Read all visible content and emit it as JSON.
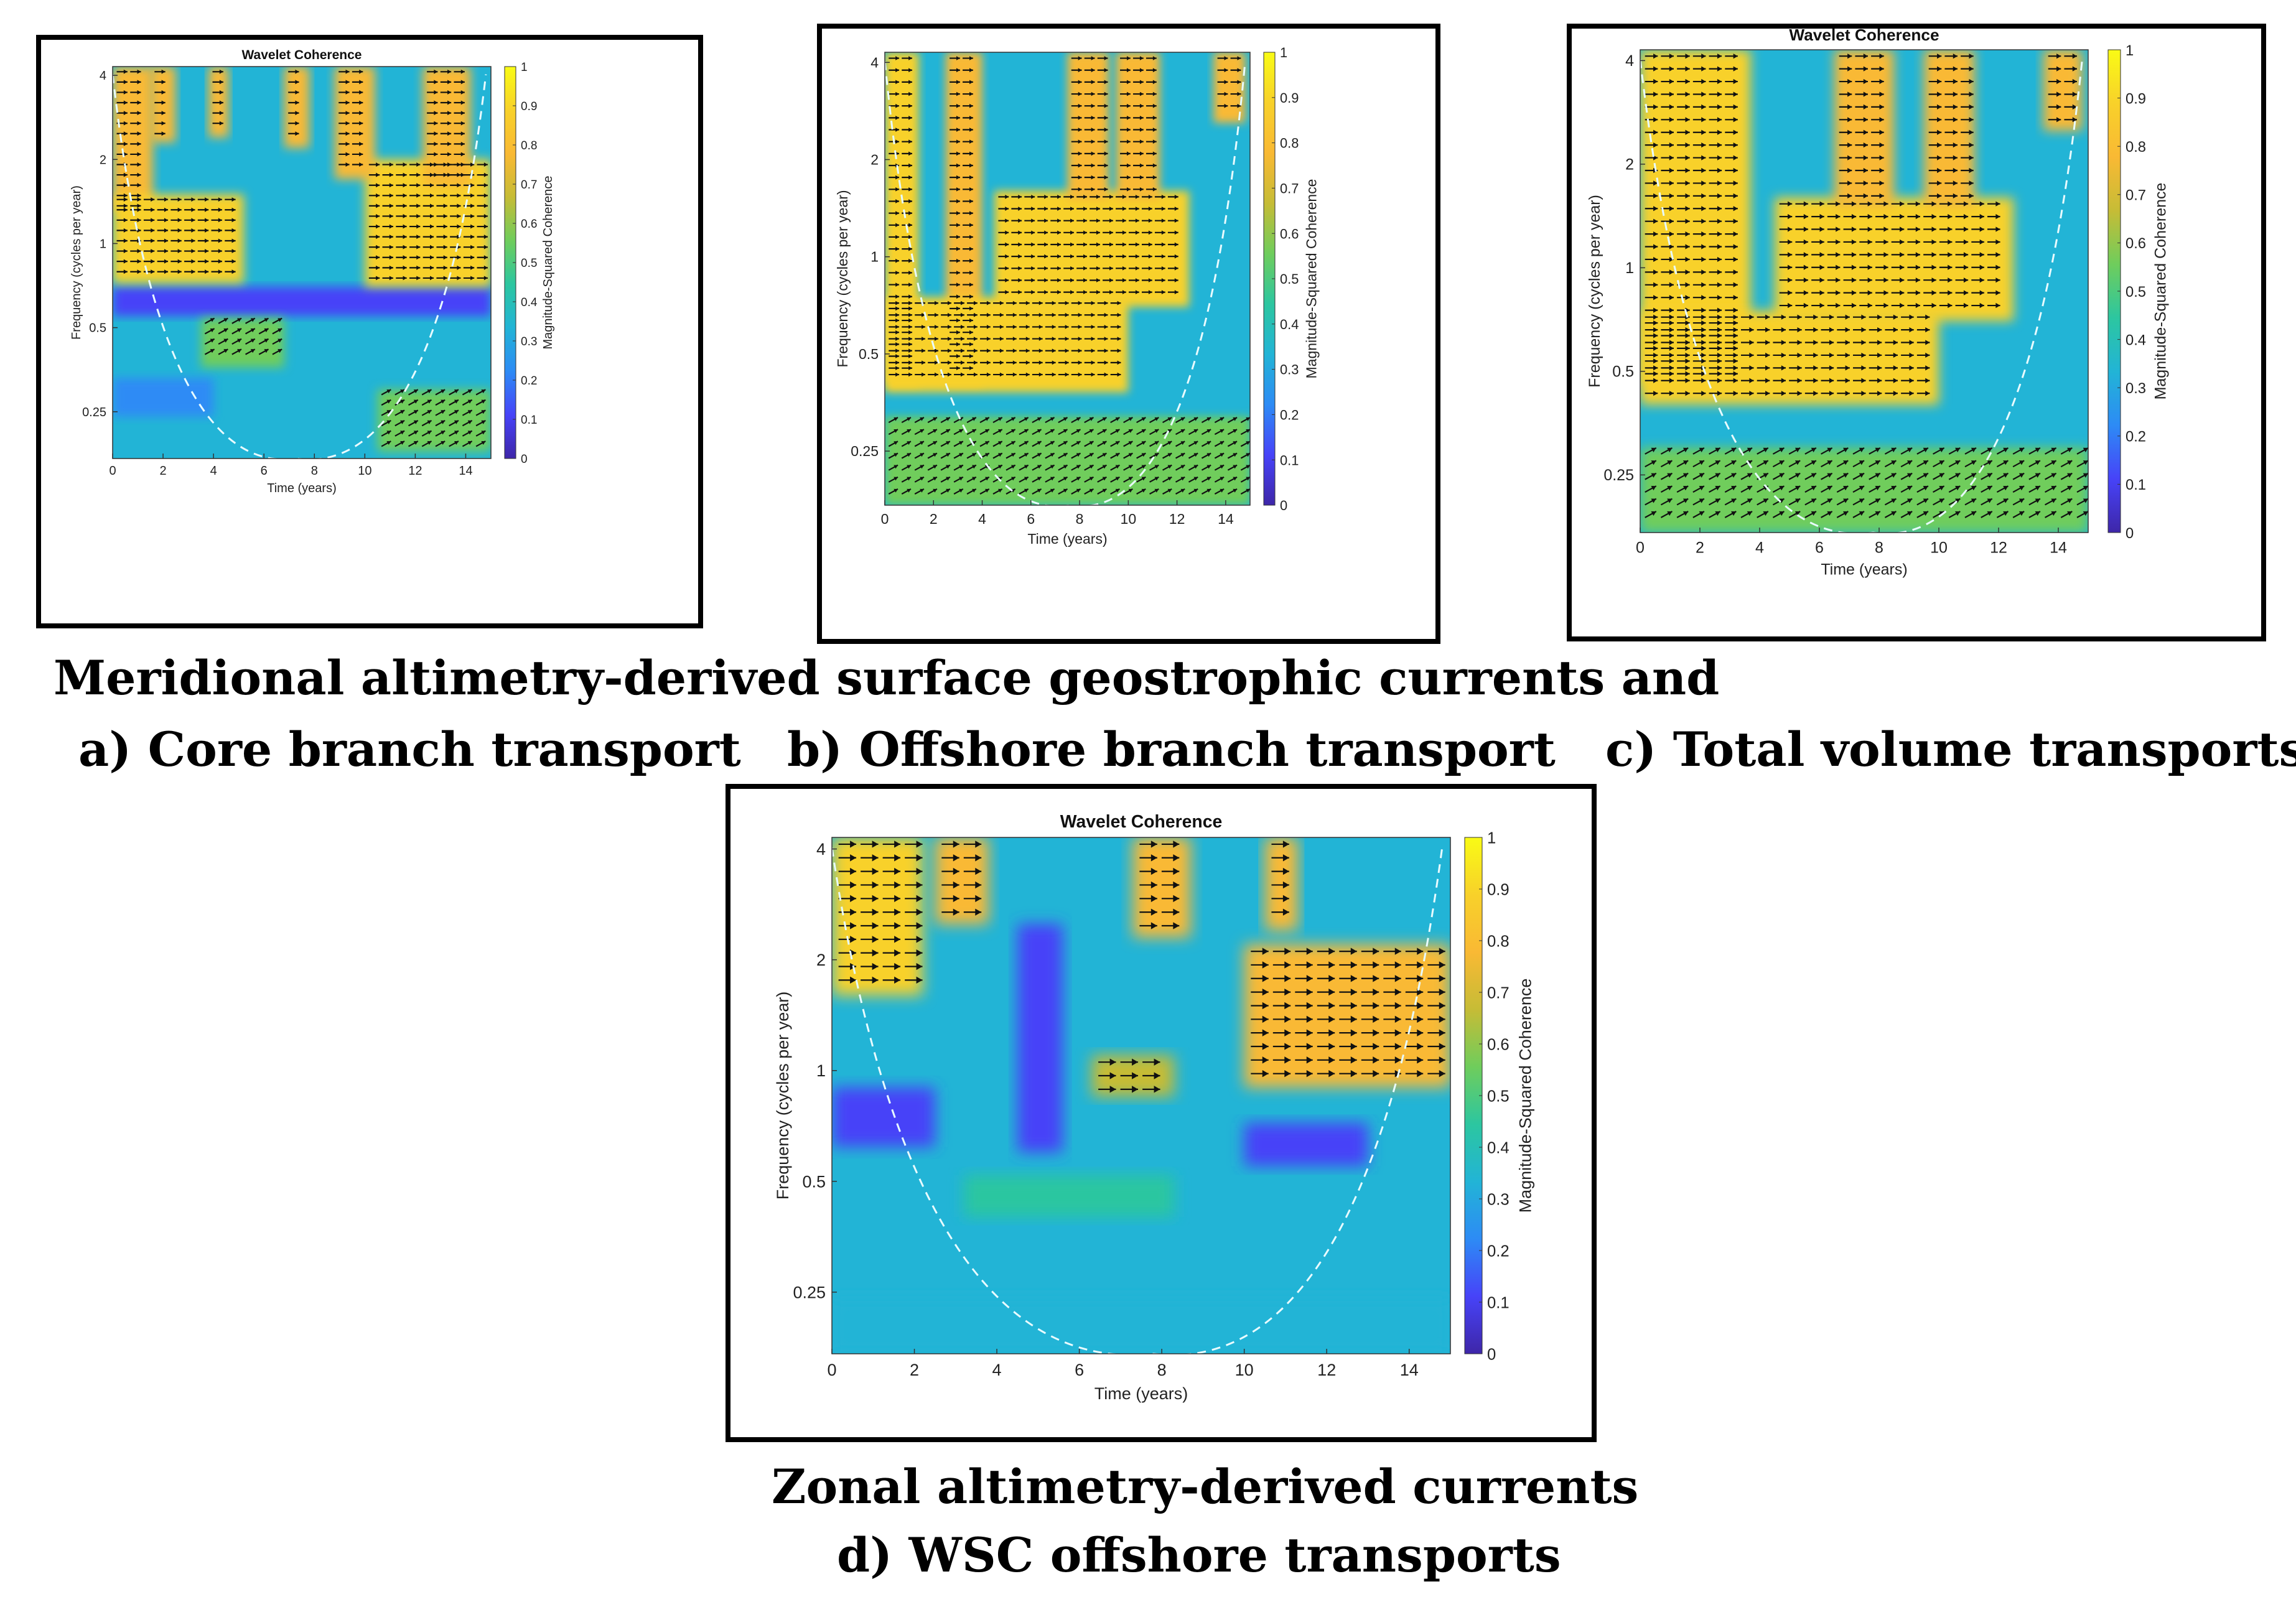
{
  "captions": {
    "meridional": "Meridional altimetry-derived surface geostrophic currents and",
    "a": "a) Core branch transport",
    "b": "b) Offshore branch transport",
    "c": "c) Total volume transports",
    "zonal": "Zonal altimetry-derived currents",
    "d": "d) WSC offshore transports"
  },
  "colormap": [
    "#3e26a8",
    "#4743f8",
    "#2d8bf5",
    "#22b4d6",
    "#2cc6a0",
    "#6fcd5c",
    "#c6bc36",
    "#f9b934",
    "#f8d12a",
    "#f9fb15"
  ],
  "chart_data": [
    {
      "id": "a",
      "type": "heatmap",
      "title": "Wavelet Coherence",
      "xlabel": "Time (years)",
      "ylabel": "Frequency (cycles per year)",
      "colorbar_label": "Magnitude-Squared Coherence",
      "xticks": [
        "0",
        "2",
        "4",
        "6",
        "8",
        "10",
        "12",
        "14"
      ],
      "yticks": [
        "4",
        "2",
        "1",
        "0.5",
        "0.25"
      ],
      "cticks": [
        "0",
        "0.1",
        "0.2",
        "0.3",
        "0.4",
        "0.5",
        "0.6",
        "0.7",
        "0.8",
        "0.9",
        "1"
      ],
      "xlim": [
        0,
        15
      ],
      "ylim": [
        0.17,
        4.3
      ],
      "clim": [
        0,
        1
      ],
      "coi_x": [
        0,
        7.3,
        14.8
      ],
      "regions": [
        {
          "x": [
            0,
            15
          ],
          "y": [
            0.17,
            4.3
          ],
          "c": 0.32
        },
        {
          "x": [
            0,
            15
          ],
          "y": [
            0.55,
            0.7
          ],
          "c": 0.12
        },
        {
          "x": [
            0,
            1.6
          ],
          "y": [
            1.3,
            4.3
          ],
          "c": 0.82
        },
        {
          "x": [
            0,
            5.2
          ],
          "y": [
            0.72,
            1.5
          ],
          "c": 0.86
        },
        {
          "x": [
            1.5,
            2.5
          ],
          "y": [
            2.3,
            4.3
          ],
          "c": 0.78
        },
        {
          "x": [
            3.8,
            4.6
          ],
          "y": [
            2.4,
            4.3
          ],
          "c": 0.76
        },
        {
          "x": [
            6.8,
            7.8
          ],
          "y": [
            2.2,
            4.3
          ],
          "c": 0.76
        },
        {
          "x": [
            10,
            15
          ],
          "y": [
            0.7,
            2.0
          ],
          "c": 0.85
        },
        {
          "x": [
            8.8,
            10.4
          ],
          "y": [
            1.7,
            4.3
          ],
          "c": 0.8
        },
        {
          "x": [
            12.3,
            14.2
          ],
          "y": [
            1.6,
            4.3
          ],
          "c": 0.8
        },
        {
          "x": [
            3.5,
            6.8
          ],
          "y": [
            0.36,
            0.54
          ],
          "c": 0.55
        },
        {
          "x": [
            10.5,
            15
          ],
          "y": [
            0.18,
            0.3
          ],
          "c": 0.5
        },
        {
          "x": [
            0,
            4
          ],
          "y": [
            0.24,
            0.33
          ],
          "c": 0.2
        }
      ]
    },
    {
      "id": "b",
      "type": "heatmap",
      "title": "",
      "xlabel": "Time (years)",
      "ylabel": "Frequency (cycles per year)",
      "colorbar_label": "Magnitude-Squared Coherence",
      "xticks": [
        "0",
        "2",
        "4",
        "6",
        "8",
        "10",
        "12",
        "14"
      ],
      "yticks": [
        "4",
        "2",
        "1",
        "0.5",
        "0.25"
      ],
      "cticks": [
        "0",
        "0.1",
        "0.2",
        "0.3",
        "0.4",
        "0.5",
        "0.6",
        "0.7",
        "0.8",
        "0.9",
        "1"
      ],
      "xlim": [
        0,
        15
      ],
      "ylim": [
        0.17,
        4.3
      ],
      "clim": [
        0,
        1
      ],
      "coi_x": [
        0,
        7.6,
        14.8
      ],
      "regions": [
        {
          "x": [
            0,
            15
          ],
          "y": [
            0.17,
            4.3
          ],
          "c": 0.3
        },
        {
          "x": [
            0,
            1.4
          ],
          "y": [
            0.4,
            4.3
          ],
          "c": 0.85
        },
        {
          "x": [
            2.5,
            4.0
          ],
          "y": [
            0.4,
            4.3
          ],
          "c": 0.82
        },
        {
          "x": [
            0,
            10
          ],
          "y": [
            0.38,
            0.75
          ],
          "c": 0.85
        },
        {
          "x": [
            4.5,
            12.5
          ],
          "y": [
            0.7,
            1.6
          ],
          "c": 0.86
        },
        {
          "x": [
            7.5,
            9.2
          ],
          "y": [
            1.5,
            4.3
          ],
          "c": 0.8
        },
        {
          "x": [
            9.5,
            11.3
          ],
          "y": [
            1.5,
            4.3
          ],
          "c": 0.78
        },
        {
          "x": [
            13.5,
            14.8
          ],
          "y": [
            2.6,
            4.3
          ],
          "c": 0.8
        },
        {
          "x": [
            0,
            15
          ],
          "y": [
            0.17,
            0.32
          ],
          "c": 0.6
        }
      ]
    },
    {
      "id": "c",
      "type": "heatmap",
      "title": "Wavelet Coherence",
      "xlabel": "Time (years)",
      "ylabel": "Frequency (cycles per year)",
      "colorbar_label": "Magnitude-Squared Coherence",
      "xticks": [
        "0",
        "2",
        "4",
        "6",
        "8",
        "10",
        "12",
        "14"
      ],
      "yticks": [
        "4",
        "2",
        "1",
        "0.5",
        "0.25"
      ],
      "cticks": [
        "0",
        "0.1",
        "0.2",
        "0.3",
        "0.4",
        "0.5",
        "0.6",
        "0.7",
        "0.8",
        "0.9",
        "1"
      ],
      "xlim": [
        0,
        15
      ],
      "ylim": [
        0.17,
        4.3
      ],
      "clim": [
        0,
        1
      ],
      "coi_x": [
        0,
        7.8,
        14.8
      ],
      "regions": [
        {
          "x": [
            0,
            15
          ],
          "y": [
            0.17,
            4.3
          ],
          "c": 0.3
        },
        {
          "x": [
            0,
            3.7
          ],
          "y": [
            0.45,
            4.3
          ],
          "c": 0.84
        },
        {
          "x": [
            0,
            10
          ],
          "y": [
            0.4,
            0.75
          ],
          "c": 0.85
        },
        {
          "x": [
            4.5,
            12.5
          ],
          "y": [
            0.7,
            1.6
          ],
          "c": 0.86
        },
        {
          "x": [
            6.5,
            8.5
          ],
          "y": [
            1.5,
            4.3
          ],
          "c": 0.78
        },
        {
          "x": [
            9.5,
            11.2
          ],
          "y": [
            1.5,
            4.3
          ],
          "c": 0.8
        },
        {
          "x": [
            13.5,
            14.8
          ],
          "y": [
            2.5,
            4.3
          ],
          "c": 0.8
        },
        {
          "x": [
            0,
            15
          ],
          "y": [
            0.17,
            0.3
          ],
          "c": 0.55
        }
      ]
    },
    {
      "id": "d",
      "type": "heatmap",
      "title": "Wavelet Coherence",
      "xlabel": "Time (years)",
      "ylabel": "Frequency (cycles per year)",
      "colorbar_label": "Magnitude-Squared Coherence",
      "xticks": [
        "0",
        "2",
        "4",
        "6",
        "8",
        "10",
        "12",
        "14"
      ],
      "yticks": [
        "4",
        "2",
        "1",
        "0.5",
        "0.25"
      ],
      "cticks": [
        "0",
        "0.1",
        "0.2",
        "0.3",
        "0.4",
        "0.5",
        "0.6",
        "0.7",
        "0.8",
        "0.9",
        "1"
      ],
      "xlim": [
        0,
        15
      ],
      "ylim": [
        0.17,
        4.3
      ],
      "clim": [
        0,
        1
      ],
      "coi_x": [
        0,
        7.8,
        14.8
      ],
      "regions": [
        {
          "x": [
            0,
            15
          ],
          "y": [
            0.17,
            4.3
          ],
          "c": 0.3
        },
        {
          "x": [
            0,
            2.2
          ],
          "y": [
            1.6,
            4.3
          ],
          "c": 0.85
        },
        {
          "x": [
            2.5,
            3.8
          ],
          "y": [
            2.5,
            4.3
          ],
          "c": 0.8
        },
        {
          "x": [
            7.3,
            8.7
          ],
          "y": [
            2.3,
            4.3
          ],
          "c": 0.82
        },
        {
          "x": [
            10.5,
            11.3
          ],
          "y": [
            2.4,
            4.3
          ],
          "c": 0.76
        },
        {
          "x": [
            10,
            15
          ],
          "y": [
            0.9,
            2.2
          ],
          "c": 0.82
        },
        {
          "x": [
            6.3,
            8.3
          ],
          "y": [
            0.85,
            1.1
          ],
          "c": 0.72
        },
        {
          "x": [
            0,
            2.5
          ],
          "y": [
            0.62,
            0.9
          ],
          "c": 0.1
        },
        {
          "x": [
            4.5,
            5.6
          ],
          "y": [
            0.6,
            2.5
          ],
          "c": 0.1
        },
        {
          "x": [
            10,
            13
          ],
          "y": [
            0.55,
            0.72
          ],
          "c": 0.12
        },
        {
          "x": [
            3.2,
            8.3
          ],
          "y": [
            0.4,
            0.52
          ],
          "c": 0.42
        },
        {
          "x": [
            0,
            15
          ],
          "y": [
            0.17,
            0.24
          ],
          "c": 0.35
        }
      ]
    }
  ]
}
